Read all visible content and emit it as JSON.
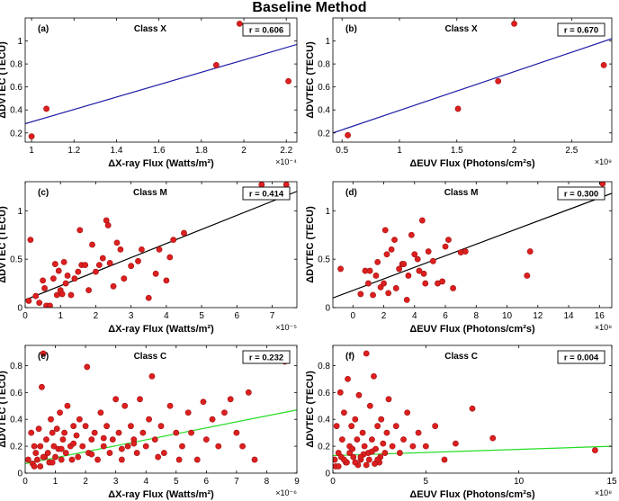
{
  "figure": {
    "title": "Baseline Method"
  },
  "colors": {
    "marker": "#dd1f1f",
    "marker_edge": "#a01010",
    "fit_X": "#1c1ca6",
    "fit_M": "#000000",
    "fit_C": "#22dd22"
  },
  "chart_data": [
    {
      "type": "scatter",
      "panel_label": "(a)",
      "title": "Class X",
      "r_label": "r = 0.606",
      "xlabel": "ΔX-ray Flux (Watts/m²)",
      "ylabel": "ΔDVTEC (TECU)",
      "x_multiplier": "×10⁻⁴",
      "xlim": [
        0.97,
        2.25
      ],
      "ylim": [
        0.12,
        1.2
      ],
      "xticks": [
        1,
        1.2,
        1.4,
        1.6,
        1.8,
        2,
        2.2
      ],
      "yticks": [
        0.2,
        0.4,
        0.6,
        0.8,
        1
      ],
      "x": [
        1.0,
        1.07,
        1.87,
        1.98,
        2.21
      ],
      "y": [
        0.17,
        0.41,
        0.79,
        1.15,
        0.65
      ],
      "fit": {
        "x": [
          0.97,
          2.25
        ],
        "y": [
          0.28,
          0.97
        ]
      },
      "fit_color": "fit_X"
    },
    {
      "type": "scatter",
      "panel_label": "(b)",
      "title": "Class X",
      "r_label": "r = 0.670",
      "xlabel": "ΔEUV Flux (Photons/cm²s)",
      "ylabel": "ΔDVTEC (TECU)",
      "x_multiplier": "×10⁹",
      "xlim": [
        0.42,
        2.85
      ],
      "ylim": [
        0.12,
        1.2
      ],
      "xticks": [
        0.5,
        1,
        1.5,
        2,
        2.5
      ],
      "yticks": [
        0.2,
        0.4,
        0.6,
        0.8,
        1
      ],
      "x": [
        0.55,
        1.51,
        1.86,
        2.0,
        2.78
      ],
      "y": [
        0.18,
        0.41,
        0.65,
        1.15,
        0.79
      ],
      "fit": {
        "x": [
          0.42,
          2.85
        ],
        "y": [
          0.2,
          1.02
        ]
      },
      "fit_color": "fit_X"
    },
    {
      "type": "scatter",
      "panel_label": "(c)",
      "title": "Class M",
      "r_label": "r = 0.414",
      "xlabel": "ΔX-ray Flux (Watts/m²)",
      "ylabel": "ΔDVTEC (TECU)",
      "x_multiplier": "×10⁻⁵",
      "xlim": [
        0,
        7.7
      ],
      "ylim": [
        0,
        1.3
      ],
      "xticks": [
        0,
        1,
        2,
        3,
        4,
        5,
        6,
        7
      ],
      "yticks": [
        0,
        0.5,
        1
      ],
      "x": [
        0.1,
        0.15,
        0.3,
        0.4,
        0.5,
        0.55,
        0.6,
        0.7,
        0.8,
        0.85,
        0.9,
        0.95,
        1.0,
        1.05,
        1.1,
        1.15,
        1.2,
        1.3,
        1.4,
        1.5,
        1.55,
        1.6,
        1.7,
        1.8,
        1.9,
        2.0,
        2.1,
        2.2,
        2.3,
        2.35,
        2.4,
        2.5,
        2.6,
        2.7,
        2.8,
        3.0,
        3.2,
        3.3,
        3.5,
        3.7,
        3.8,
        4.0,
        4.1,
        4.2,
        4.5,
        6.7,
        7.4
      ],
      "y": [
        0.07,
        0.7,
        0.12,
        0.05,
        0.28,
        0.2,
        0.02,
        0.02,
        0.3,
        0.45,
        0.13,
        0.38,
        0.18,
        0.14,
        0.47,
        0.25,
        0.33,
        0.13,
        0.3,
        0.37,
        0.8,
        0.44,
        0.44,
        0.18,
        0.65,
        0.37,
        0.44,
        0.51,
        0.9,
        0.85,
        0.46,
        0.22,
        0.67,
        0.6,
        0.3,
        0.43,
        0.48,
        0.6,
        0.1,
        0.35,
        0.6,
        0.28,
        0.52,
        0.7,
        0.77,
        1.27,
        1.27
      ],
      "fit": {
        "x": [
          0,
          7.7
        ],
        "y": [
          0.08,
          1.2
        ]
      },
      "fit_color": "fit_M"
    },
    {
      "type": "scatter",
      "panel_label": "(d)",
      "title": "Class M",
      "r_label": "r = 0.300",
      "xlabel": "ΔEUV Flux (Photons/cm²s)",
      "ylabel": "ΔDVTEC (TECU)",
      "x_multiplier": "×10⁸",
      "xlim": [
        -1.3,
        16.8
      ],
      "ylim": [
        0,
        1.3
      ],
      "xticks": [
        0,
        2,
        4,
        6,
        8,
        10,
        12,
        14,
        16
      ],
      "yticks": [
        0,
        0.5,
        1
      ],
      "x": [
        -0.8,
        0.5,
        0.8,
        1.0,
        1.1,
        1.3,
        1.5,
        1.6,
        1.8,
        2.0,
        2.1,
        2.2,
        2.3,
        2.5,
        2.7,
        2.8,
        3.0,
        3.2,
        3.3,
        3.5,
        3.6,
        3.8,
        4.0,
        4.2,
        4.3,
        4.5,
        4.6,
        4.7,
        4.9,
        5.2,
        5.5,
        5.8,
        6.0,
        6.2,
        6.5,
        7.0,
        7.3,
        11.3,
        11.5,
        16.2
      ],
      "y": [
        0.4,
        0.14,
        0.38,
        0.25,
        0.38,
        0.13,
        0.33,
        0.47,
        0.21,
        0.25,
        0.8,
        0.55,
        0.15,
        0.6,
        0.7,
        0.2,
        0.4,
        0.45,
        0.45,
        0.08,
        0.33,
        0.75,
        0.55,
        0.5,
        0.38,
        0.9,
        0.35,
        0.25,
        0.58,
        0.48,
        0.25,
        0.27,
        0.63,
        0.7,
        0.2,
        0.57,
        0.58,
        0.33,
        0.58,
        1.28
      ],
      "fit": {
        "x": [
          -1.3,
          16.8
        ],
        "y": [
          0.1,
          1.18
        ]
      },
      "fit_color": "fit_M"
    },
    {
      "type": "scatter",
      "panel_label": "(e)",
      "title": "Class C",
      "r_label": "r = 0.232",
      "xlabel": "ΔX-ray Flux (Watts/m²)",
      "ylabel": "ΔDVTEC (TECU)",
      "x_multiplier": "×10⁻⁶",
      "xlim": [
        0,
        9
      ],
      "ylim": [
        0,
        0.95
      ],
      "xticks": [
        0,
        1,
        2,
        3,
        4,
        5,
        6,
        7,
        8,
        9
      ],
      "yticks": [
        0,
        0.2,
        0.4,
        0.6,
        0.8
      ],
      "x": [
        0.1,
        0.2,
        0.25,
        0.3,
        0.35,
        0.4,
        0.45,
        0.5,
        0.5,
        0.55,
        0.6,
        0.65,
        0.7,
        0.75,
        0.8,
        0.85,
        0.9,
        0.95,
        1.0,
        1.05,
        1.1,
        1.15,
        1.2,
        1.25,
        1.3,
        1.35,
        1.4,
        1.5,
        1.55,
        1.6,
        1.7,
        1.75,
        1.8,
        1.9,
        2.0,
        2.05,
        2.1,
        2.2,
        2.3,
        2.4,
        2.5,
        2.6,
        2.7,
        2.8,
        2.9,
        3.0,
        3.1,
        3.2,
        3.3,
        3.4,
        3.5,
        3.6,
        3.7,
        3.8,
        3.9,
        4.0,
        4.1,
        4.2,
        4.3,
        4.5,
        4.6,
        4.8,
        5.0,
        5.2,
        5.4,
        5.5,
        5.7,
        5.9,
        6.0,
        6.2,
        6.4,
        6.6,
        6.8,
        7.0,
        7.2,
        7.4,
        7.6,
        8.6,
        0.3,
        0.6,
        0.9,
        1.2,
        1.6,
        2.2,
        2.6,
        3.2,
        3.6,
        4.4,
        5.1
      ],
      "y": [
        0.1,
        0.3,
        0.07,
        0.2,
        0.15,
        0.1,
        0.33,
        0.05,
        0.2,
        0.64,
        0.89,
        0.12,
        0.25,
        0.15,
        0.08,
        0.4,
        0.3,
        0.2,
        0.12,
        0.33,
        0.18,
        0.45,
        0.1,
        0.25,
        0.3,
        0.15,
        0.5,
        0.2,
        0.1,
        0.35,
        0.28,
        0.12,
        0.4,
        0.2,
        0.35,
        0.79,
        0.15,
        0.25,
        0.3,
        0.1,
        0.45,
        0.2,
        0.35,
        0.15,
        0.25,
        0.55,
        0.3,
        0.1,
        0.5,
        0.2,
        0.35,
        0.25,
        0.15,
        0.55,
        0.3,
        0.2,
        0.4,
        0.72,
        0.25,
        0.35,
        0.15,
        0.5,
        0.3,
        0.2,
        0.45,
        0.3,
        0.1,
        0.53,
        0.25,
        0.4,
        0.2,
        0.45,
        0.55,
        0.3,
        0.2,
        0.6,
        0.1,
        0.83,
        0.05,
        0.12,
        0.08,
        0.18,
        0.22,
        0.14,
        0.26,
        0.18,
        0.22,
        0.12,
        0.1
      ],
      "fit": {
        "x": [
          0,
          9
        ],
        "y": [
          0.07,
          0.47
        ]
      },
      "fit_color": "fit_C"
    },
    {
      "type": "scatter",
      "panel_label": "(f)",
      "title": "Class C",
      "r_label": "r = 0.004",
      "xlabel": "ΔEUV Flux (Photons/cm²s)",
      "ylabel": "ΔDVTEC (TECU)",
      "x_multiplier": "×10⁸",
      "xlim": [
        0,
        15
      ],
      "ylim": [
        0,
        0.95
      ],
      "xticks": [
        0,
        5,
        10,
        15
      ],
      "yticks": [
        0,
        0.2,
        0.4,
        0.6,
        0.8
      ],
      "x": [
        0.1,
        0.2,
        0.3,
        0.4,
        0.5,
        0.6,
        0.7,
        0.8,
        0.9,
        1.0,
        1.1,
        1.2,
        1.3,
        1.4,
        1.5,
        1.6,
        1.7,
        1.8,
        1.9,
        2.0,
        2.1,
        2.2,
        2.3,
        2.4,
        2.5,
        2.6,
        2.7,
        2.8,
        2.9,
        3.0,
        3.2,
        3.4,
        3.6,
        3.8,
        4.0,
        4.3,
        4.6,
        5.0,
        5.5,
        6.0,
        6.6,
        7.5,
        8.6,
        14.1,
        0.15,
        0.45,
        0.75,
        1.05,
        1.35,
        1.65,
        1.95,
        2.25,
        2.55,
        0.3,
        0.6,
        0.9,
        1.2,
        1.5,
        1.8,
        2.1,
        2.4
      ],
      "y": [
        0.1,
        0.35,
        0.15,
        0.6,
        0.25,
        0.45,
        0.08,
        0.7,
        0.2,
        0.35,
        0.12,
        0.4,
        0.25,
        0.58,
        0.1,
        0.3,
        0.2,
        0.89,
        0.15,
        0.5,
        0.25,
        0.72,
        0.18,
        0.35,
        0.08,
        0.4,
        0.22,
        0.15,
        0.3,
        0.55,
        0.2,
        0.35,
        0.15,
        0.25,
        0.45,
        0.2,
        0.3,
        0.2,
        0.35,
        0.1,
        0.22,
        0.48,
        0.26,
        0.17,
        0.05,
        0.12,
        0.08,
        0.18,
        0.06,
        0.14,
        0.1,
        0.07,
        0.12,
        0.05,
        0.1,
        0.15,
        0.08,
        0.12,
        0.06,
        0.16,
        0.1
      ],
      "fit": {
        "x": [
          0,
          15
        ],
        "y": [
          0.13,
          0.2
        ]
      },
      "fit_color": "fit_C"
    }
  ]
}
